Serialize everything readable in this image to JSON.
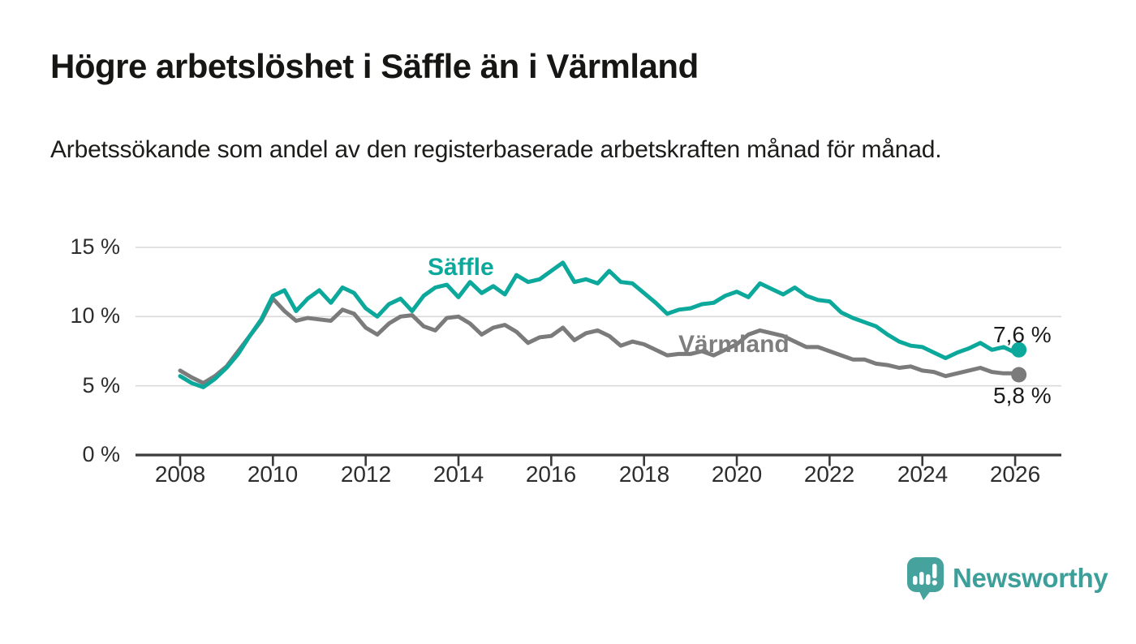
{
  "header": {
    "title": "Högre arbetslöshet i Säffle än i Värmland",
    "subtitle": "Arbetssökande som andel av den registerbaserade arbetskraften månad för månad."
  },
  "footer": {
    "brand": "Newsworthy",
    "logo_color": "#46a29d"
  },
  "chart_data": {
    "type": "line",
    "title": "Högre arbetslöshet i Säffle än i Värmland",
    "subtitle": "Arbetssökande som andel av den registerbaserade arbetskraften månad för månad.",
    "x_unit": "decimal years, quarterly samples 2008–Feb 2026",
    "grid": "horizontal",
    "legend_position": "inline labels on lines",
    "ylim": [
      0,
      16.5
    ],
    "xlim": [
      2007.0,
      2027.0
    ],
    "yticks": [
      0,
      5,
      10,
      15
    ],
    "ytick_labels": [
      "0 %",
      "5 %",
      "10 %",
      "15 %"
    ],
    "xticks": [
      2008,
      2010,
      2012,
      2014,
      2016,
      2018,
      2020,
      2022,
      2024,
      2026
    ],
    "xtick_labels": [
      "2008",
      "2010",
      "2012",
      "2014",
      "2016",
      "2018",
      "2020",
      "2022",
      "2024",
      "2026"
    ],
    "x": [
      2008.0,
      2008.25,
      2008.5,
      2008.75,
      2009.0,
      2009.25,
      2009.5,
      2009.75,
      2010.0,
      2010.25,
      2010.5,
      2010.75,
      2011.0,
      2011.25,
      2011.5,
      2011.75,
      2012.0,
      2012.25,
      2012.5,
      2012.75,
      2013.0,
      2013.25,
      2013.5,
      2013.75,
      2014.0,
      2014.25,
      2014.5,
      2014.75,
      2015.0,
      2015.25,
      2015.5,
      2015.75,
      2016.0,
      2016.25,
      2016.5,
      2016.75,
      2017.0,
      2017.25,
      2017.5,
      2017.75,
      2018.0,
      2018.25,
      2018.5,
      2018.75,
      2019.0,
      2019.25,
      2019.5,
      2019.75,
      2020.0,
      2020.25,
      2020.5,
      2020.75,
      2021.0,
      2021.25,
      2021.5,
      2021.75,
      2022.0,
      2022.25,
      2022.5,
      2022.75,
      2023.0,
      2023.25,
      2023.5,
      2023.75,
      2024.0,
      2024.25,
      2024.5,
      2024.75,
      2025.0,
      2025.25,
      2025.5,
      2025.75,
      2026.0,
      2026.08
    ],
    "series": [
      {
        "name": "Säffle",
        "color": "#0ba89b",
        "end_value_label": "7,6 %",
        "end_value": 7.6,
        "values": [
          5.7,
          5.2,
          4.9,
          5.5,
          6.3,
          7.3,
          8.6,
          9.8,
          11.5,
          11.9,
          10.4,
          11.3,
          11.9,
          11.0,
          12.1,
          11.7,
          10.6,
          10.0,
          10.9,
          11.3,
          10.4,
          11.5,
          12.1,
          12.3,
          11.4,
          12.5,
          11.7,
          12.2,
          11.6,
          13.0,
          12.5,
          12.7,
          13.3,
          13.9,
          12.5,
          12.7,
          12.4,
          13.3,
          12.5,
          12.4,
          11.7,
          11.0,
          10.2,
          10.5,
          10.6,
          10.9,
          11.0,
          11.5,
          11.8,
          11.4,
          12.4,
          12.0,
          11.6,
          12.1,
          11.5,
          11.2,
          11.1,
          10.3,
          9.9,
          9.6,
          9.3,
          8.7,
          8.2,
          7.9,
          7.8,
          7.4,
          7.0,
          7.4,
          7.7,
          8.1,
          7.6,
          7.8,
          7.4,
          7.6
        ]
      },
      {
        "name": "Värmland",
        "color": "#7b7b7b",
        "end_value_label": "5,8 %",
        "end_value": 5.8,
        "values": [
          6.1,
          5.6,
          5.2,
          5.7,
          6.4,
          7.5,
          8.6,
          9.7,
          11.3,
          10.4,
          9.7,
          9.9,
          9.8,
          9.7,
          10.5,
          10.2,
          9.2,
          8.7,
          9.5,
          10.0,
          10.1,
          9.3,
          9.0,
          9.9,
          10.0,
          9.5,
          8.7,
          9.2,
          9.4,
          8.9,
          8.1,
          8.5,
          8.6,
          9.2,
          8.3,
          8.8,
          9.0,
          8.6,
          7.9,
          8.2,
          8.0,
          7.6,
          7.2,
          7.3,
          7.3,
          7.5,
          7.2,
          7.6,
          8.0,
          8.7,
          9.0,
          8.8,
          8.6,
          8.2,
          7.8,
          7.8,
          7.5,
          7.2,
          6.9,
          6.9,
          6.6,
          6.5,
          6.3,
          6.4,
          6.1,
          6.0,
          5.7,
          5.9,
          6.1,
          6.3,
          6.0,
          5.9,
          5.9,
          5.8
        ]
      }
    ]
  }
}
